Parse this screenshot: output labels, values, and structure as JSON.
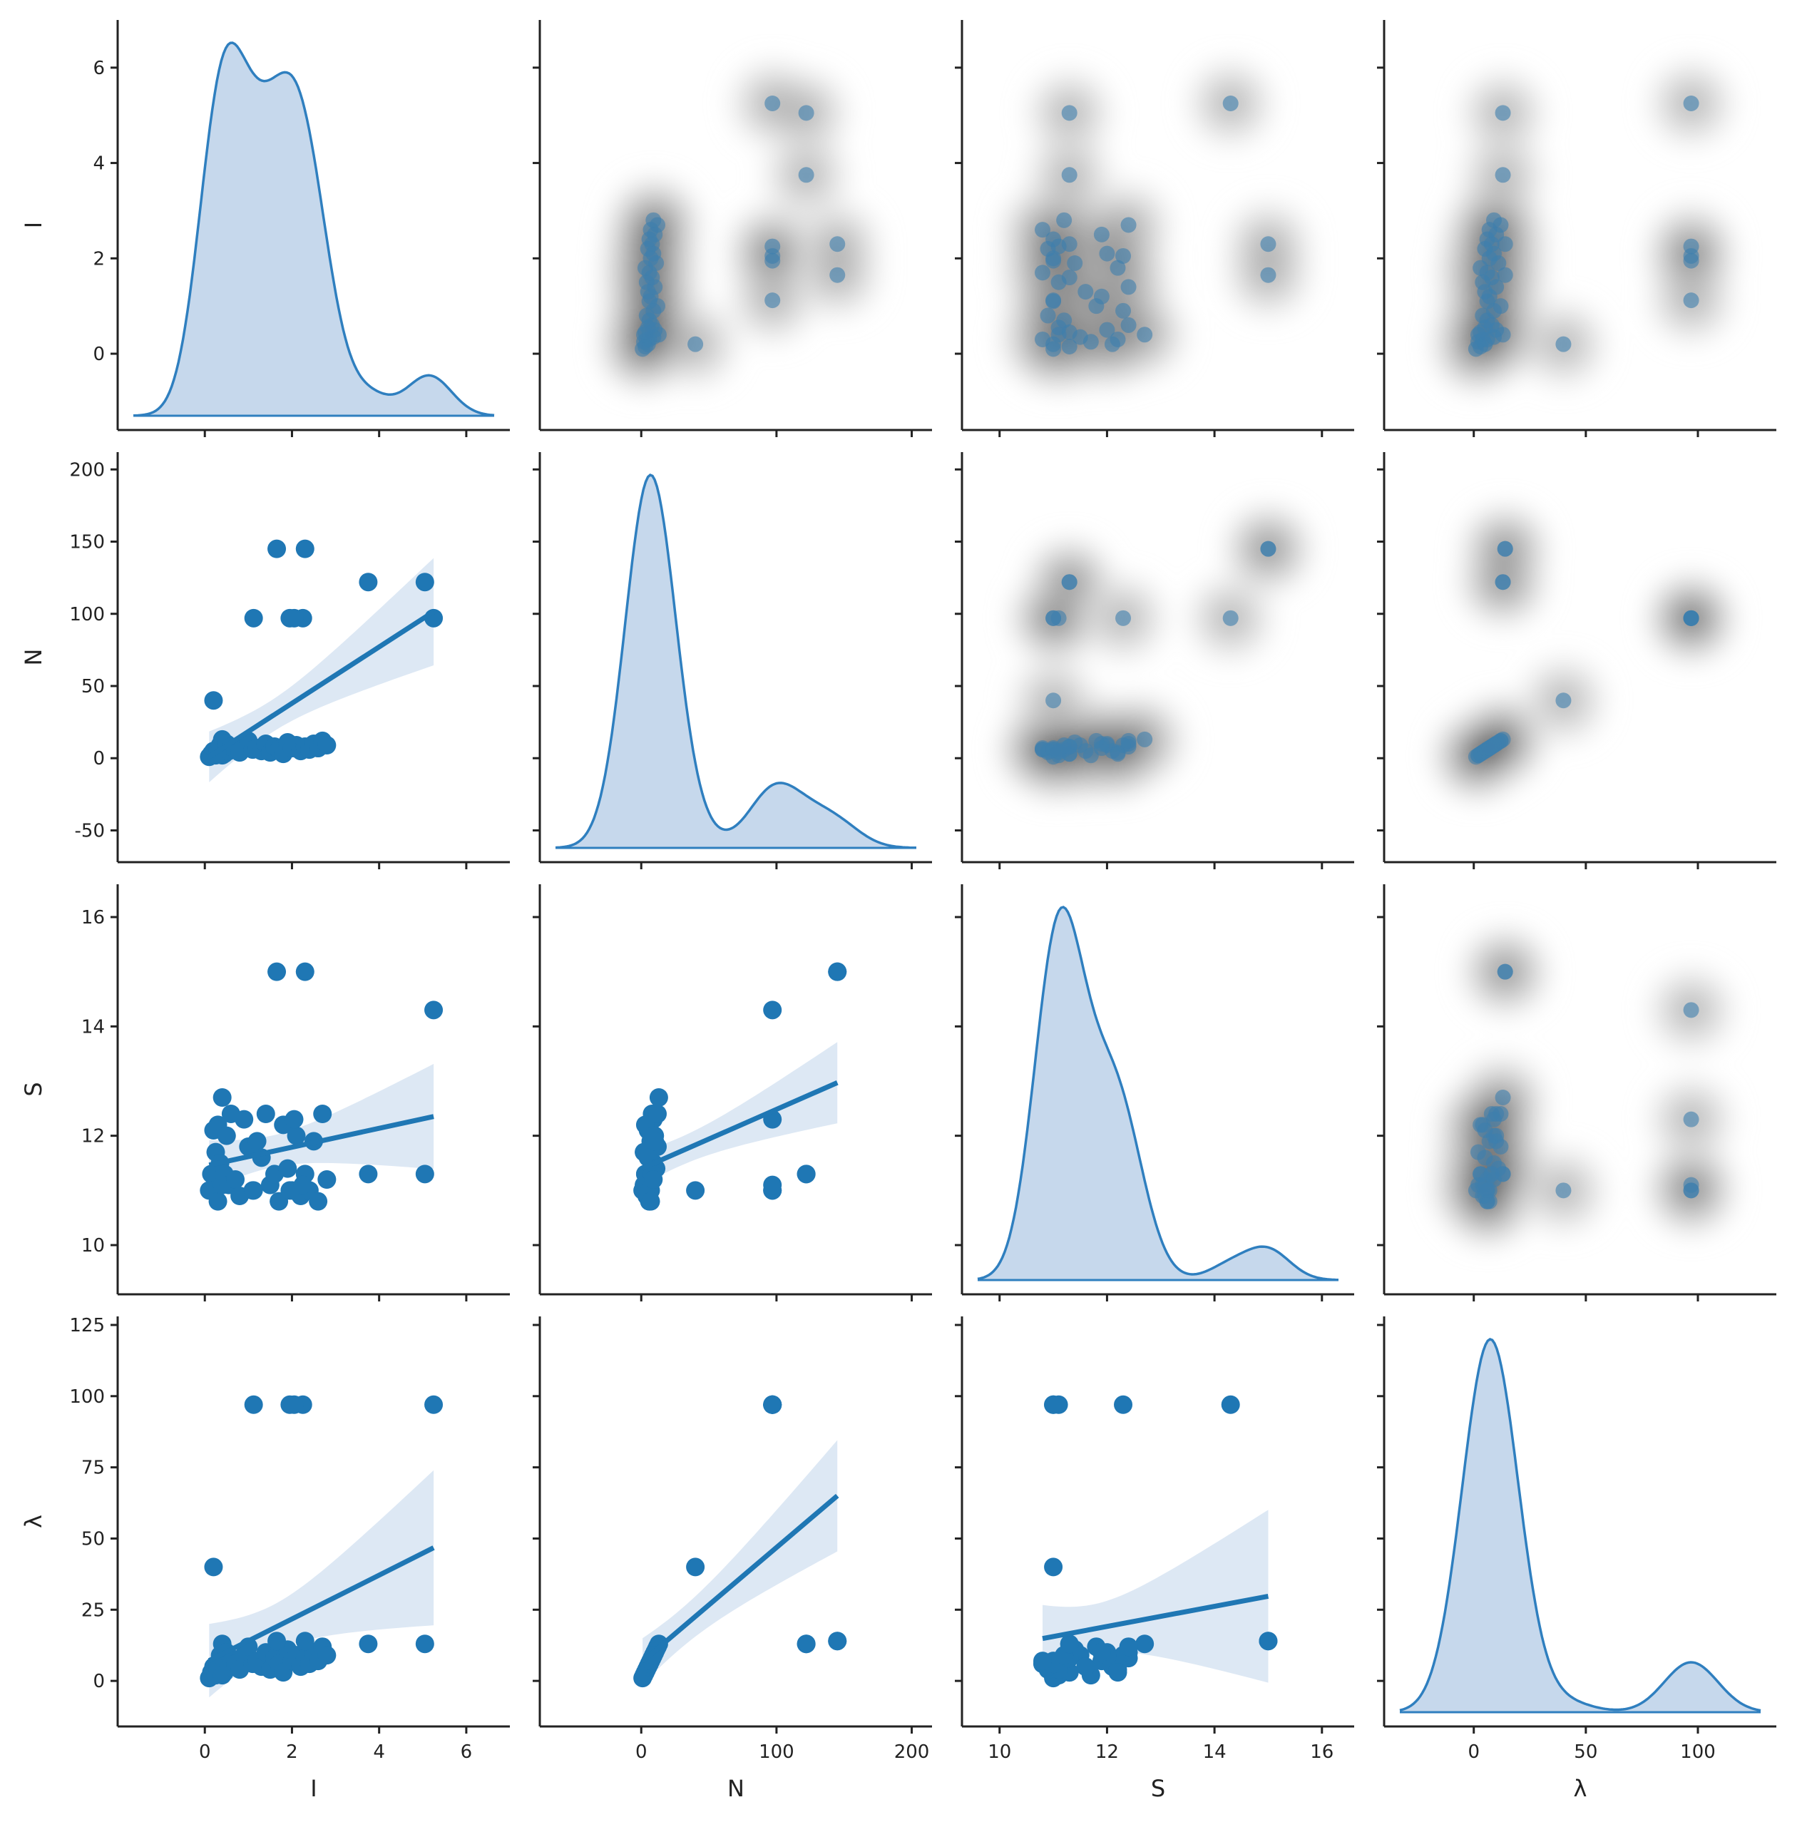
{
  "chart_data": {
    "type": "pairplot",
    "variables": [
      "I",
      "N",
      "S",
      "λ"
    ],
    "axis_labels": [
      "I",
      "N",
      "S",
      "λ"
    ],
    "ticks": {
      "I": [
        0,
        2,
        4,
        6
      ],
      "N": [
        0,
        100,
        200
      ],
      "S": [
        10,
        12,
        14,
        16
      ]
    },
    "ytick_sets": {
      "I": [
        0,
        2,
        4,
        6
      ],
      "N": [
        -50,
        0,
        50,
        100,
        150,
        200
      ],
      "S": [
        10,
        12,
        14,
        16
      ],
      "λ": [
        0,
        25,
        50,
        75,
        100,
        125
      ]
    },
    "xtick_sets": {
      "I": [
        0,
        2,
        4,
        6
      ],
      "N": [
        0,
        100,
        200
      ],
      "S": [
        10,
        12,
        14,
        16
      ],
      "λ": [
        0,
        50,
        100
      ]
    },
    "ranges": {
      "I": [
        -2.0,
        7.0
      ],
      "N": [
        -75,
        215
      ],
      "S": [
        9.3,
        16.6
      ],
      "λ": [
        -40,
        135
      ]
    },
    "ylims": {
      "I": [
        -1.6,
        7.0
      ],
      "N": [
        -72,
        212
      ],
      "S": [
        9.1,
        16.6
      ],
      "λ": [
        -16,
        128
      ]
    },
    "points": {
      "I": [
        0.1,
        0.15,
        0.2,
        0.2,
        0.25,
        0.3,
        0.3,
        0.35,
        0.4,
        0.4,
        0.45,
        0.5,
        0.55,
        0.6,
        0.7,
        0.8,
        0.9,
        1.0,
        1.1,
        1.2,
        1.3,
        1.4,
        1.5,
        1.6,
        1.7,
        1.8,
        1.9,
        2.0,
        2.1,
        2.2,
        2.3,
        2.4,
        2.5,
        2.6,
        2.7,
        2.8,
        1.12,
        1.95,
        2.25,
        2.05,
        3.75,
        5.05,
        5.25,
        1.65,
        2.3
      ],
      "N": [
        1,
        3,
        5,
        40,
        2,
        4,
        6,
        9,
        2,
        13,
        3,
        10,
        5,
        8,
        6,
        4,
        9,
        12,
        6,
        7,
        5,
        10,
        4,
        8,
        6,
        3,
        11,
        7,
        9,
        5,
        8,
        6,
        10,
        7,
        12,
        9,
        97,
        97,
        97,
        97,
        122,
        122,
        97,
        145,
        145
      ],
      "S": [
        11.0,
        11.3,
        12.1,
        11.0,
        11.7,
        12.2,
        10.8,
        11.5,
        11.1,
        12.7,
        11.3,
        12.0,
        11.1,
        12.4,
        11.2,
        10.9,
        12.3,
        11.8,
        11.0,
        11.9,
        11.6,
        12.4,
        11.1,
        11.3,
        10.8,
        12.2,
        11.4,
        11.0,
        12.0,
        10.9,
        11.3,
        11.0,
        11.9,
        10.8,
        12.4,
        11.2,
        11.0,
        11.0,
        11.1,
        12.3,
        11.3,
        11.3,
        14.3,
        15.0,
        15.0
      ],
      "λ": [
        1,
        3,
        5,
        40,
        2,
        4,
        6,
        9,
        2,
        13,
        3,
        10,
        5,
        8,
        6,
        4,
        9,
        12,
        6,
        7,
        5,
        10,
        4,
        8,
        6,
        3,
        11,
        7,
        9,
        5,
        8,
        6,
        10,
        7,
        12,
        9,
        97,
        97,
        97,
        97,
        13,
        13,
        97,
        14,
        14
      ]
    },
    "style": {
      "kde_line": "#2f7fbf",
      "kde_fill": "#c6d8ec",
      "point": "#1f77b4",
      "regression_band": "#dde8f4",
      "density_light": "#d8d8d8",
      "density_dark": "#404040",
      "axis": "#222222"
    }
  }
}
